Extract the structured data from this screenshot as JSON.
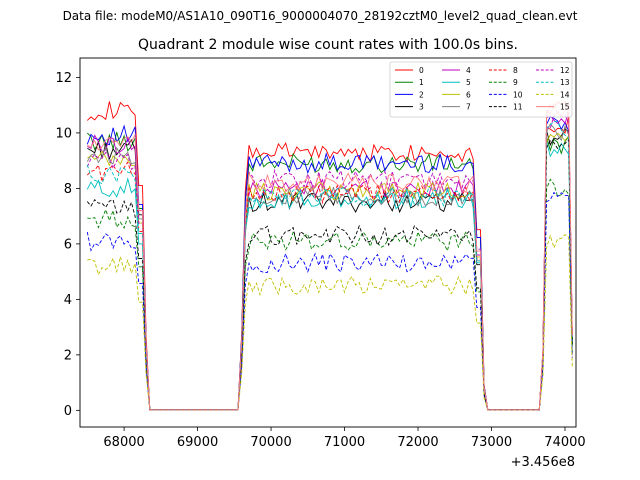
{
  "chart_data": {
    "type": "line",
    "suptitle": "Data file: modeM0/AS1A10_090T16_9000004070_28192cztM0_level2_quad_clean.evt",
    "title": "Quadrant 2 module wise count rates with 100.0s bins.",
    "xlabel": "",
    "ylabel": "",
    "x_offset_label": "+3.456e8",
    "xlim": [
      67400,
      74150
    ],
    "ylim": [
      -0.6,
      12.7
    ],
    "xticks": [
      68000,
      69000,
      70000,
      71000,
      72000,
      73000,
      74000
    ],
    "yticks": [
      0,
      2,
      4,
      6,
      8,
      10,
      12
    ],
    "legend_position": "upper-right",
    "legend_columns": 4,
    "x_segments": [
      [
        67500,
        68300
      ],
      [
        69600,
        72900
      ],
      [
        73700,
        74100
      ]
    ],
    "gap_value": 0.02,
    "series": [
      {
        "name": "0",
        "color": "#ff0000",
        "dash": "solid",
        "level": [
          10.8,
          9.3,
          10.3
        ]
      },
      {
        "name": "1",
        "color": "#008000",
        "dash": "solid",
        "level": [
          9.7,
          8.9,
          9.6
        ]
      },
      {
        "name": "2",
        "color": "#0000ff",
        "dash": "solid",
        "level": [
          9.9,
          8.9,
          10.4
        ]
      },
      {
        "name": "3",
        "color": "#000000",
        "dash": "solid",
        "level": [
          9.4,
          7.5,
          9.8
        ]
      },
      {
        "name": "4",
        "color": "#bf00bf",
        "dash": "solid",
        "level": [
          9.6,
          8.0,
          10.6
        ]
      },
      {
        "name": "5",
        "color": "#00bfbf",
        "dash": "solid",
        "level": [
          8.0,
          7.6,
          9.5
        ]
      },
      {
        "name": "6",
        "color": "#bfbf00",
        "dash": "solid",
        "level": [
          9.0,
          7.9,
          9.9
        ]
      },
      {
        "name": "7",
        "color": "#808080",
        "dash": "solid",
        "level": [
          9.2,
          7.7,
          10.0
        ]
      },
      {
        "name": "8",
        "color": "#ff0000",
        "dash": "dashed",
        "level": [
          8.6,
          7.8,
          10.9
        ]
      },
      {
        "name": "9",
        "color": "#008000",
        "dash": "dashed",
        "level": [
          6.9,
          6.1,
          8.0
        ]
      },
      {
        "name": "10",
        "color": "#0000ff",
        "dash": "dashed",
        "level": [
          6.1,
          5.3,
          7.6
        ]
      },
      {
        "name": "11",
        "color": "#000000",
        "dash": "dashed",
        "level": [
          7.3,
          6.3,
          9.5
        ]
      },
      {
        "name": "12",
        "color": "#bf00bf",
        "dash": "dashed",
        "level": [
          9.0,
          8.3,
          10.5
        ]
      },
      {
        "name": "13",
        "color": "#00bfbf",
        "dash": "dashed",
        "level": [
          8.5,
          7.7,
          10.1
        ]
      },
      {
        "name": "14",
        "color": "#bfbf00",
        "dash": "dashed",
        "level": [
          5.2,
          4.5,
          6.1
        ]
      },
      {
        "name": "15",
        "color": "#ff7f7f",
        "dash": "solid",
        "level": [
          9.6,
          8.2,
          10.8
        ]
      }
    ]
  }
}
